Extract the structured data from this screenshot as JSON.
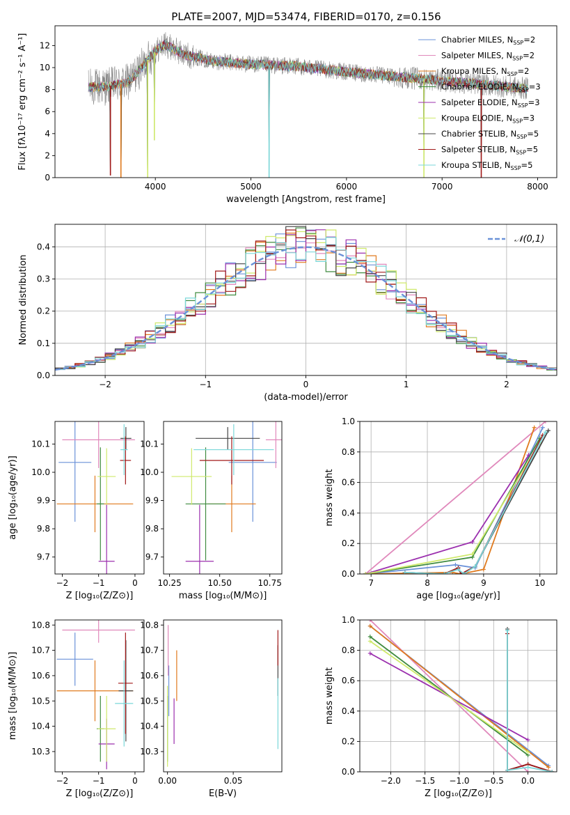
{
  "title": "PLATE=2007, MJD=53474, FIBERID=0170, z=0.156",
  "colors": {
    "Chabrier MILES": "#6a91d8",
    "Salpeter MILES": "#e088bb",
    "Kroupa MILES": "#e07a1e",
    "Chabrier ELODIE": "#3f8b3f",
    "Salpeter ELODIE": "#9b2fae",
    "Kroupa ELODIE": "#cfe96b",
    "Chabrier STELIB": "#444444",
    "Salpeter STELIB": "#a01818",
    "Kroupa STELIB": "#7ad7d9",
    "data": "#888888",
    "gauss": "#6a91d8"
  },
  "chart_data": [
    {
      "type": "line",
      "panel": "spectrum",
      "xlabel": "wavelength [Angstrom, rest frame]",
      "ylabel": "Flux [fλ10⁻¹⁷ erg cm⁻² s⁻¹ A⁻¹]",
      "xlim": [
        2950,
        8200
      ],
      "ylim": [
        0,
        13.8
      ],
      "xticks": [
        "4000",
        "5000",
        "6000",
        "7000",
        "8000"
      ],
      "xtick_values": [
        4000,
        5000,
        6000,
        7000,
        8000
      ],
      "yticks": [
        "0",
        "2",
        "4",
        "6",
        "8",
        "10",
        "12"
      ],
      "ytick_values": [
        0,
        2,
        4,
        6,
        8,
        10,
        12
      ],
      "legend_position": "top-right",
      "legend": [
        {
          "label": "Chabrier MILES, N",
          "sub": "SSP",
          "suffix": "=2"
        },
        {
          "label": "Salpeter MILES, N",
          "sub": "SSP",
          "suffix": "=2"
        },
        {
          "label": "Kroupa MILES, N",
          "sub": "SSP",
          "suffix": "=2"
        },
        {
          "label": "Chabrier ELODIE, N",
          "sub": "SSP",
          "suffix": "=3"
        },
        {
          "label": "Salpeter ELODIE, N",
          "sub": "SSP",
          "suffix": "=3"
        },
        {
          "label": "Kroupa ELODIE, N",
          "sub": "SSP",
          "suffix": "=3"
        },
        {
          "label": "Chabrier STELIB, N",
          "sub": "SSP",
          "suffix": "=5"
        },
        {
          "label": "Salpeter STELIB, N",
          "sub": "SSP",
          "suffix": "=5"
        },
        {
          "label": "Kroupa STELIB, N",
          "sub": "SSP",
          "suffix": "=5"
        }
      ],
      "continuum": {
        "x": [
          3300,
          3500,
          3700,
          3800,
          3900,
          4000,
          4100,
          4300,
          4600,
          5000,
          5500,
          6000,
          6500,
          7000,
          7500,
          8000
        ],
        "y": [
          8.2,
          8.3,
          8.6,
          9.4,
          10.5,
          11.5,
          12.1,
          11.2,
          10.6,
          10.3,
          10.1,
          9.6,
          9.2,
          8.8,
          8.4,
          8.0
        ]
      },
      "data_range": [
        3300,
        7900
      ],
      "model_dips": [
        {
          "x": 3530,
          "y": 0.2
        },
        {
          "x": 3640,
          "y": 0.0
        },
        {
          "x": 3920,
          "y": 0.0
        },
        {
          "x": 3990,
          "y": 3.4
        },
        {
          "x": 5190,
          "y": 0.0
        },
        {
          "x": 6810,
          "y": 0.0
        },
        {
          "x": 7410,
          "y": 0.0
        }
      ]
    },
    {
      "type": "bar",
      "panel": "residual distribution",
      "xlabel": "(data-model)/error",
      "ylabel": "Normed distribution",
      "xlim": [
        -2.5,
        2.5
      ],
      "ylim": [
        0,
        0.47
      ],
      "xticks": [
        "−2",
        "−1",
        "0",
        "1",
        "2"
      ],
      "xtick_values": [
        -2,
        -1,
        0,
        1,
        2
      ],
      "yticks": [
        "0.0",
        "0.1",
        "0.2",
        "0.3",
        "0.4"
      ],
      "ytick_values": [
        0,
        0.1,
        0.2,
        0.3,
        0.4
      ],
      "bin_width": 0.1,
      "bin_start": -2.5,
      "gauss_label": "𝒩(0,1)",
      "legend_position": "top-right"
    },
    {
      "type": "scatter",
      "panel": "Z vs age",
      "xlabel": "Z [log₁₀(Z/Z⊙)]",
      "ylabel": "age  [log₁₀(age/yr)]",
      "xlim": [
        -2.2,
        0.25
      ],
      "ylim": [
        9.64,
        10.18
      ],
      "xticks": [
        "−2",
        "−1",
        "0"
      ],
      "xtick_values": [
        -2,
        -1,
        0
      ],
      "yticks": [
        "9.7",
        "9.8",
        "9.9",
        "10.0",
        "10.1"
      ],
      "ytick_values": [
        9.7,
        9.8,
        9.9,
        10.0,
        10.1
      ],
      "points": [
        {
          "model": "Chabrier MILES",
          "x": -1.65,
          "xerr": 0.45,
          "y": 10.035,
          "yerr": 0.21
        },
        {
          "model": "Salpeter MILES",
          "x": -1.0,
          "xerr": 1.0,
          "y": 10.115,
          "yerr": 0.1
        },
        {
          "model": "Kroupa MILES",
          "x": -1.1,
          "xerr": 1.05,
          "y": 9.888,
          "yerr": 0.1
        },
        {
          "model": "Chabrier ELODIE",
          "x": -0.95,
          "xerr": 0.1,
          "y": 9.888,
          "yerr": 0.2
        },
        {
          "model": "Salpeter ELODIE",
          "x": -0.78,
          "xerr": 0.22,
          "y": 9.685,
          "yerr": 0.2
        },
        {
          "model": "Kroupa ELODIE",
          "x": -0.78,
          "xerr": 0.25,
          "y": 9.985,
          "yerr": 0.1
        },
        {
          "model": "Chabrier STELIB",
          "x": -0.25,
          "xerr": 0.15,
          "y": 10.12,
          "yerr": 0.04
        },
        {
          "model": "Salpeter STELIB",
          "x": -0.26,
          "xerr": 0.15,
          "y": 10.042,
          "yerr": 0.085
        },
        {
          "model": "Kroupa STELIB",
          "x": -0.3,
          "xerr": 0.1,
          "y": 10.08,
          "yerr": 0.09
        }
      ]
    },
    {
      "type": "scatter",
      "panel": "mass vs age",
      "xlabel": "mass [log₁₀(M/M⊙)]",
      "ylabel": "",
      "xlim": [
        10.22,
        10.81
      ],
      "ylim": [
        9.64,
        10.18
      ],
      "xticks": [
        "10.25",
        "10.50",
        "10.75"
      ],
      "xtick_values": [
        10.25,
        10.5,
        10.75
      ],
      "yticks": [
        "9.7",
        "9.8",
        "9.9",
        "10.0",
        "10.1"
      ],
      "ytick_values": [
        9.7,
        9.8,
        9.9,
        10.0,
        10.1
      ],
      "points": [
        {
          "model": "Chabrier MILES",
          "x": 10.665,
          "xerr": 0.12,
          "y": 10.035,
          "yerr": 0.21
        },
        {
          "model": "Salpeter MILES",
          "x": 10.78,
          "xerr": 0.05,
          "y": 10.115,
          "yerr": 0.1
        },
        {
          "model": "Kroupa MILES",
          "x": 10.56,
          "xerr": 0.12,
          "y": 9.888,
          "yerr": 0.1
        },
        {
          "model": "Chabrier ELODIE",
          "x": 10.43,
          "xerr": 0.1,
          "y": 9.888,
          "yerr": 0.2
        },
        {
          "model": "Salpeter ELODIE",
          "x": 10.4,
          "xerr": 0.07,
          "y": 9.685,
          "yerr": 0.2
        },
        {
          "model": "Kroupa ELODIE",
          "x": 10.36,
          "xerr": 0.1,
          "y": 9.985,
          "yerr": 0.1
        },
        {
          "model": "Chabrier STELIB",
          "x": 10.54,
          "xerr": 0.16,
          "y": 10.12,
          "yerr": 0.04
        },
        {
          "model": "Salpeter STELIB",
          "x": 10.56,
          "xerr": 0.16,
          "y": 10.042,
          "yerr": 0.085
        },
        {
          "model": "Kroupa STELIB",
          "x": 10.57,
          "xerr": 0.2,
          "y": 10.08,
          "yerr": 0.09
        }
      ]
    },
    {
      "type": "line",
      "panel": "age vs mass weight",
      "xlabel": "age  [log₁₀(age/yr)]",
      "ylabel": "mass weight",
      "xlim": [
        6.8,
        10.3
      ],
      "ylim": [
        0,
        1
      ],
      "xticks": [
        "7",
        "8",
        "9",
        "10"
      ],
      "xtick_values": [
        7,
        8,
        9,
        10
      ],
      "yticks": [
        "0.0",
        "0.2",
        "0.4",
        "0.6",
        "0.8",
        "1.0"
      ],
      "ytick_values": [
        0,
        0.2,
        0.4,
        0.6,
        0.8,
        1.0
      ],
      "series": [
        {
          "model": "Chabrier MILES",
          "x": [
            6.9,
            8.5,
            8.85,
            10.05
          ],
          "y": [
            0.0,
            0.06,
            0.04,
            0.96
          ]
        },
        {
          "model": "Salpeter MILES",
          "x": [
            6.9,
            10.1
          ],
          "y": [
            0.0,
            1.0
          ]
        },
        {
          "model": "Kroupa MILES",
          "x": [
            6.9,
            8.45,
            8.6,
            9.0,
            9.9
          ],
          "y": [
            0.0,
            0.01,
            0.0,
            0.03,
            0.96
          ]
        },
        {
          "model": "Chabrier ELODIE",
          "x": [
            6.9,
            8.8,
            10.0
          ],
          "y": [
            0.0,
            0.11,
            0.89
          ]
        },
        {
          "model": "Salpeter ELODIE",
          "x": [
            6.9,
            8.8,
            9.8
          ],
          "y": [
            0.0,
            0.21,
            0.78
          ]
        },
        {
          "model": "Kroupa ELODIE",
          "x": [
            6.9,
            8.8,
            10.0
          ],
          "y": [
            0.0,
            0.13,
            0.86
          ]
        },
        {
          "model": "Chabrier STELIB",
          "x": [
            7.6,
            8.3,
            8.55,
            8.6,
            8.85,
            10.15
          ],
          "y": [
            0.01,
            0.0,
            0.04,
            0.0,
            0.05,
            0.94
          ]
        },
        {
          "model": "Salpeter STELIB",
          "x": [
            7.6,
            8.3,
            8.55,
            8.6,
            8.85,
            10.05
          ],
          "y": [
            0.01,
            0.0,
            0.04,
            0.0,
            0.05,
            0.91
          ]
        },
        {
          "model": "Kroupa STELIB",
          "x": [
            7.6,
            8.3,
            8.55,
            8.65,
            8.85,
            10.1
          ],
          "y": [
            0.01,
            0.0,
            0.03,
            0.0,
            0.05,
            0.93
          ]
        }
      ]
    },
    {
      "type": "scatter",
      "panel": "Z vs mass",
      "xlabel": "Z [log₁₀(Z/Z⊙)]",
      "ylabel": "mass [log₁₀(M/M⊙)]",
      "xlim": [
        -2.2,
        0.25
      ],
      "ylim": [
        10.22,
        10.82
      ],
      "xticks": [
        "−2",
        "−1",
        "0"
      ],
      "xtick_values": [
        -2,
        -1,
        0
      ],
      "yticks": [
        "10.3",
        "10.4",
        "10.5",
        "10.6",
        "10.7",
        "10.8"
      ],
      "ytick_values": [
        10.3,
        10.4,
        10.5,
        10.6,
        10.7,
        10.8
      ],
      "points": [
        {
          "model": "Chabrier MILES",
          "x": -1.65,
          "xerr": 0.5,
          "y": 10.665,
          "yerr": 0.105
        },
        {
          "model": "Salpeter MILES",
          "x": -1.0,
          "xerr": 1.0,
          "y": 10.78,
          "yerr": 0.05
        },
        {
          "model": "Kroupa MILES",
          "x": -1.1,
          "xerr": 1.05,
          "y": 10.54,
          "yerr": 0.12
        },
        {
          "model": "Chabrier ELODIE",
          "x": -0.95,
          "xerr": 0.1,
          "y": 10.39,
          "yerr": 0.13
        },
        {
          "model": "Salpeter ELODIE",
          "x": -0.78,
          "xerr": 0.22,
          "y": 10.33,
          "yerr": 0.1
        },
        {
          "model": "Kroupa ELODIE",
          "x": -0.78,
          "xerr": 0.25,
          "y": 10.39,
          "yerr": 0.13
        },
        {
          "model": "Chabrier STELIB",
          "x": -0.25,
          "xerr": 0.2,
          "y": 10.54,
          "yerr": 0.2
        },
        {
          "model": "Salpeter STELIB",
          "x": -0.26,
          "xerr": 0.2,
          "y": 10.57,
          "yerr": 0.2
        },
        {
          "model": "Kroupa STELIB",
          "x": -0.3,
          "xerr": 0.25,
          "y": 10.49,
          "yerr": 0.17
        }
      ]
    },
    {
      "type": "scatter",
      "panel": "E(B-V) vs mass",
      "xlabel": "E(B-V)",
      "ylabel": "",
      "xlim": [
        -0.003,
        0.087
      ],
      "ylim": [
        10.22,
        10.82
      ],
      "xticks": [
        "0.00",
        "0.05"
      ],
      "xtick_values": [
        0,
        0.05
      ],
      "yticks": [
        "10.3",
        "10.4",
        "10.5",
        "10.6",
        "10.7",
        "10.8"
      ],
      "ytick_values": [
        10.3,
        10.4,
        10.5,
        10.6,
        10.7,
        10.8
      ],
      "points": [
        {
          "model": "Chabrier MILES",
          "x": 0.001,
          "y": 10.54,
          "yerr": 0.1
        },
        {
          "model": "Salpeter MILES",
          "x": 0.0005,
          "y": 10.7,
          "yerr": 0.1
        },
        {
          "model": "Kroupa MILES",
          "x": 0.007,
          "y": 10.6,
          "yerr": 0.1
        },
        {
          "model": "Chabrier ELODIE",
          "x": 0.0,
          "y": 10.39,
          "yerr": 0.13
        },
        {
          "model": "Salpeter ELODIE",
          "x": 0.005,
          "y": 10.42,
          "yerr": 0.09
        },
        {
          "model": "Kroupa ELODIE",
          "x": 0.0,
          "y": 10.4,
          "yerr": 0.16
        },
        {
          "model": "Chabrier STELIB",
          "x": 0.084,
          "y": 10.62,
          "yerr": 0.1
        },
        {
          "model": "Salpeter STELIB",
          "x": 0.084,
          "y": 10.71,
          "yerr": 0.07
        },
        {
          "model": "Kroupa STELIB",
          "x": 0.084,
          "y": 10.45,
          "yerr": 0.14
        }
      ]
    },
    {
      "type": "line",
      "panel": "Z vs mass weight",
      "xlabel": "Z [log₁₀(Z/Z⊙)]",
      "ylabel": "mass weight",
      "xlim": [
        -2.45,
        0.42
      ],
      "ylim": [
        0,
        1
      ],
      "xticks": [
        "−2.0",
        "−1.5",
        "−1.0",
        "−0.5",
        "0.0"
      ],
      "xtick_values": [
        -2.0,
        -1.5,
        -1.0,
        -0.5,
        0.0
      ],
      "yticks": [
        "0.0",
        "0.2",
        "0.4",
        "0.6",
        "0.8",
        "1.0"
      ],
      "ytick_values": [
        0,
        0.2,
        0.4,
        0.6,
        0.8,
        1.0
      ],
      "series": [
        {
          "model": "Chabrier MILES",
          "x": [
            -2.3,
            0.3
          ],
          "y": [
            0.96,
            0.04
          ]
        },
        {
          "model": "Salpeter MILES",
          "x": [
            -2.3,
            0.0
          ],
          "y": [
            1.0,
            0.0
          ]
        },
        {
          "model": "Kroupa MILES",
          "x": [
            -2.3,
            0.3
          ],
          "y": [
            0.96,
            0.03
          ]
        },
        {
          "model": "Chabrier ELODIE",
          "x": [
            -2.3,
            0.0
          ],
          "y": [
            0.89,
            0.11
          ]
        },
        {
          "model": "Salpeter ELODIE",
          "x": [
            -2.3,
            0.0
          ],
          "y": [
            0.78,
            0.21
          ]
        },
        {
          "model": "Kroupa ELODIE",
          "x": [
            -2.3,
            0.0
          ],
          "y": [
            0.86,
            0.13
          ]
        },
        {
          "model": "Chabrier STELIB",
          "x": [
            -0.3,
            -0.3,
            0.0,
            0.35
          ],
          "y": [
            0.94,
            0.01,
            0.05,
            0.0
          ]
        },
        {
          "model": "Salpeter STELIB",
          "x": [
            -0.3,
            -0.3,
            0.0,
            0.35
          ],
          "y": [
            0.91,
            0.01,
            0.05,
            0.0
          ]
        },
        {
          "model": "Kroupa STELIB",
          "x": [
            -0.3,
            -0.3,
            0.0,
            0.35
          ],
          "y": [
            0.93,
            0.01,
            0.03,
            0.0
          ]
        }
      ]
    }
  ]
}
